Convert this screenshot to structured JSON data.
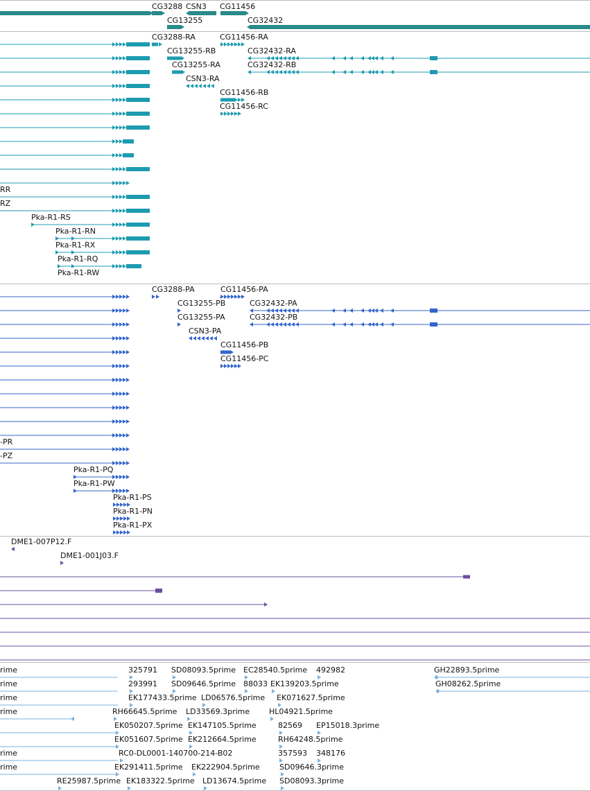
{
  "colors": {
    "gene": "#2a8a8a",
    "transcript": "#1d9bb0",
    "protein": "#3366cc",
    "clone": "#6b4fa0",
    "est": "#78b0dd",
    "divider": "#bbbbbb"
  },
  "genes": [
    {
      "label": "CG3288",
      "feature": "CG3288",
      "strand": "+",
      "rank": 0
    },
    {
      "label": "CSN3",
      "feature": "CSN3",
      "strand": "-",
      "rank": 0
    },
    {
      "label": "CG11456",
      "feature": "CG11456",
      "strand": "+",
      "rank": 0
    },
    {
      "label": "CG13255",
      "feature": "CG13255",
      "strand": "+",
      "rank": 1
    },
    {
      "label": "CG32432",
      "feature": "CG32432",
      "strand": "-",
      "rank": 1
    }
  ],
  "transcripts": [
    {
      "label": "",
      "feature": "Pka-R1-a",
      "strand": "+",
      "rank": 0
    },
    {
      "label": "",
      "feature": "Pka-R1-b",
      "strand": "+",
      "rank": 1
    },
    {
      "label": "",
      "feature": "Pka-R1-c",
      "strand": "+",
      "rank": 2
    },
    {
      "label": "",
      "feature": "Pka-R1-d",
      "strand": "+",
      "rank": 3
    },
    {
      "label": "",
      "feature": "Pka-R1-e",
      "strand": "+",
      "rank": 4
    },
    {
      "label": "",
      "feature": "Pka-R1-f",
      "strand": "+",
      "rank": 5
    },
    {
      "label": "",
      "feature": "Pka-R1-g",
      "strand": "+",
      "rank": 6
    },
    {
      "label": "",
      "feature": "Pka-R1-h",
      "strand": "+",
      "rank": 7
    },
    {
      "label": "",
      "feature": "Pka-R1-i",
      "strand": "+",
      "rank": 8
    },
    {
      "label": "",
      "feature": "Pka-R1-j",
      "strand": "+",
      "rank": 9
    },
    {
      "label": "",
      "feature": "Pka-R1-k",
      "strand": "+",
      "rank": 10
    },
    {
      "label": "RR",
      "feature": "Pka-R1-RR",
      "strand": "+",
      "rank": 11
    },
    {
      "label": "RZ",
      "feature": "Pka-R1-RZ",
      "strand": "+",
      "rank": 12
    },
    {
      "label": "Pka-R1-RS",
      "feature": "Pka-R1-RS",
      "strand": "+",
      "rank": 13
    },
    {
      "label": "Pka-R1-RN",
      "feature": "Pka-R1-RN",
      "strand": "+",
      "rank": 14
    },
    {
      "label": "Pka-R1-RX",
      "feature": "Pka-R1-RX",
      "strand": "+",
      "rank": 15
    },
    {
      "label": "Pka-R1-RQ",
      "feature": "Pka-R1-RQ",
      "strand": "+",
      "rank": 16
    },
    {
      "label": "Pka-R1-RW",
      "feature": "Pka-R1-RW",
      "strand": "+",
      "rank": 17
    },
    {
      "label": "CG3288-RA",
      "feature": "CG3288-RA",
      "strand": "+",
      "rank": 0
    },
    {
      "label": "CG13255-RB",
      "feature": "CG13255-RB",
      "strand": "+",
      "rank": 1
    },
    {
      "label": "CG13255-RA",
      "feature": "CG13255-RA",
      "strand": "+",
      "rank": 2
    },
    {
      "label": "CSN3-RA",
      "feature": "CSN3-RA",
      "strand": "-",
      "rank": 3
    },
    {
      "label": "CG11456-RA",
      "feature": "CG11456-RA",
      "strand": "+",
      "rank": 0
    },
    {
      "label": "CG11456-RB",
      "feature": "CG11456-RB",
      "strand": "+",
      "rank": 3
    },
    {
      "label": "CG11456-RC",
      "feature": "CG11456-RC",
      "strand": "+",
      "rank": 4
    },
    {
      "label": "CG32432-RA",
      "feature": "CG32432-RA",
      "strand": "-",
      "rank": 1
    },
    {
      "label": "CG32432-RB",
      "feature": "CG32432-RB",
      "strand": "-",
      "rank": 2
    }
  ],
  "proteins": [
    {
      "label": "",
      "feature": "Pka-R1-pa",
      "strand": "+",
      "rank": 0
    },
    {
      "label": "",
      "feature": "Pka-R1-pb",
      "strand": "+",
      "rank": 1
    },
    {
      "label": "",
      "feature": "Pka-R1-pc",
      "strand": "+",
      "rank": 2
    },
    {
      "label": "",
      "feature": "Pka-R1-pd",
      "strand": "+",
      "rank": 3
    },
    {
      "label": "",
      "feature": "Pka-R1-pe",
      "strand": "+",
      "rank": 4
    },
    {
      "label": "",
      "feature": "Pka-R1-pf",
      "strand": "+",
      "rank": 5
    },
    {
      "label": "",
      "feature": "Pka-R1-pg",
      "strand": "+",
      "rank": 6
    },
    {
      "label": "",
      "feature": "Pka-R1-ph",
      "strand": "+",
      "rank": 7
    },
    {
      "label": "",
      "feature": "Pka-R1-pi",
      "strand": "+",
      "rank": 8
    },
    {
      "label": "",
      "feature": "Pka-R1-pj",
      "strand": "+",
      "rank": 9
    },
    {
      "label": "-PR",
      "feature": "Pka-R1-PR",
      "strand": "+",
      "rank": 10
    },
    {
      "label": "-PZ",
      "feature": "Pka-R1-PZ",
      "strand": "+",
      "rank": 11
    },
    {
      "label": "Pka-R1-PQ",
      "feature": "Pka-R1-PQ",
      "strand": "+",
      "rank": 12
    },
    {
      "label": "Pka-R1-PW",
      "feature": "Pka-R1-PW",
      "strand": "+",
      "rank": 13
    },
    {
      "label": "Pka-R1-PS",
      "feature": "Pka-R1-PS",
      "strand": "+",
      "rank": 14
    },
    {
      "label": "Pka-R1-PN",
      "feature": "Pka-R1-PN",
      "strand": "+",
      "rank": 15
    },
    {
      "label": "Pka-R1-PX",
      "feature": "Pka-R1-PX",
      "strand": "+",
      "rank": 16
    },
    {
      "label": "CG3288-PA",
      "feature": "CG3288-PA",
      "strand": "+",
      "rank": 0
    },
    {
      "label": "CG11456-PA",
      "feature": "CG11456-PA",
      "strand": "+",
      "rank": 0
    },
    {
      "label": "CG13255-PB",
      "feature": "CG13255-PB",
      "strand": "+",
      "rank": 1
    },
    {
      "label": "CG13255-PA",
      "feature": "CG13255-PA",
      "strand": "+",
      "rank": 2
    },
    {
      "label": "CSN3-PA",
      "feature": "CSN3-PA",
      "strand": "-",
      "rank": 3
    },
    {
      "label": "CG11456-PB",
      "feature": "CG11456-PB",
      "strand": "+",
      "rank": 4
    },
    {
      "label": "CG11456-PC",
      "feature": "CG11456-PC",
      "strand": "+",
      "rank": 5
    },
    {
      "label": "CG32432-PA",
      "feature": "CG32432-PA",
      "strand": "-",
      "rank": 1
    },
    {
      "label": "CG32432-PB",
      "feature": "CG32432-PB",
      "strand": "-",
      "rank": 2
    }
  ],
  "clones": [
    {
      "label": "DME1-007P12.F",
      "feature": "DME1-007P12.F",
      "strand": "-",
      "rank": 0
    },
    {
      "label": "DME1-001J03.F",
      "feature": "DME1-001J03.F",
      "strand": "+",
      "rank": 1
    },
    {
      "label": "",
      "feature": "clone-c",
      "strand": "+",
      "rank": 2
    },
    {
      "label": "",
      "feature": "clone-d",
      "strand": "+",
      "rank": 3
    },
    {
      "label": "",
      "feature": "clone-e",
      "strand": "-",
      "rank": 4
    },
    {
      "label": "",
      "feature": "clone-f",
      "strand": "+",
      "rank": 5
    },
    {
      "label": "",
      "feature": "clone-g",
      "strand": "+",
      "rank": 6
    },
    {
      "label": "",
      "feature": "clone-h",
      "strand": "+",
      "rank": 7
    },
    {
      "label": "",
      "feature": "clone-i",
      "strand": "+",
      "rank": 8
    }
  ],
  "ests": [
    {
      "label": "rime",
      "feature": "est-left-1",
      "rank": 0
    },
    {
      "label": "rime",
      "feature": "est-left-2",
      "rank": 1
    },
    {
      "label": "rime",
      "feature": "est-left-3",
      "rank": 2
    },
    {
      "label": "rime",
      "feature": "est-left-4",
      "rank": 3
    },
    {
      "label": "rime",
      "feature": "est-left-7",
      "rank": 6
    },
    {
      "label": "rime",
      "feature": "est-left-8",
      "rank": 7
    },
    {
      "label": "325791",
      "feature": "325791",
      "rank": 0
    },
    {
      "label": "SD08093.5prime",
      "feature": "SD08093.5prime",
      "rank": 0
    },
    {
      "label": "EC28540.5prime",
      "feature": "EC28540.5prime",
      "rank": 0
    },
    {
      "label": "492982",
      "feature": "492982",
      "rank": 0
    },
    {
      "label": "GH22893.5prime",
      "feature": "GH22893.5prime",
      "rank": 0
    },
    {
      "label": "293991",
      "feature": "293991",
      "rank": 1
    },
    {
      "label": "SD09646.5prime",
      "feature": "SD09646.5prime",
      "rank": 1
    },
    {
      "label": "88033",
      "feature": "88033",
      "rank": 1
    },
    {
      "label": "EK139203.5prime",
      "feature": "EK139203.5prime",
      "rank": 1
    },
    {
      "label": "GH08262.5prime",
      "feature": "GH08262.5prime",
      "rank": 1
    },
    {
      "label": "EK177433.5prime",
      "feature": "EK177433.5prime",
      "rank": 2
    },
    {
      "label": "LD06576.5prime",
      "feature": "LD06576.5prime",
      "rank": 2
    },
    {
      "label": "EK071627.5prime",
      "feature": "EK071627.5prime",
      "rank": 2
    },
    {
      "label": "RH66645.5prime",
      "feature": "RH66645.5prime",
      "rank": 3
    },
    {
      "label": "LD33569.3prime",
      "feature": "LD33569.3prime",
      "rank": 3
    },
    {
      "label": "HL04921.5prime",
      "feature": "HL04921.5prime",
      "rank": 3
    },
    {
      "label": "EK050207.5prime",
      "feature": "EK050207.5prime",
      "rank": 4
    },
    {
      "label": "EK147105.5prime",
      "feature": "EK147105.5prime",
      "rank": 4
    },
    {
      "label": "82569",
      "feature": "82569",
      "rank": 4
    },
    {
      "label": "EP15018.3prime",
      "feature": "EP15018.3prime",
      "rank": 4
    },
    {
      "label": "EK051607.5prime",
      "feature": "EK051607.5prime",
      "rank": 5
    },
    {
      "label": "EK212664.5prime",
      "feature": "EK212664.5prime",
      "rank": 5
    },
    {
      "label": "RH64248.5prime",
      "feature": "RH64248.5prime",
      "rank": 5
    },
    {
      "label": "RC0-DL0001-140700-214-B02",
      "feature": "RC0-DL0001-140700-214-B02",
      "rank": 6
    },
    {
      "label": "357593",
      "feature": "357593",
      "rank": 6
    },
    {
      "label": "348176",
      "feature": "348176",
      "rank": 6
    },
    {
      "label": "EK291411.5prime",
      "feature": "EK291411.5prime",
      "rank": 7
    },
    {
      "label": "EK222904.5prime",
      "feature": "EK222904.5prime",
      "rank": 7
    },
    {
      "label": "SD09646.3prime",
      "feature": "SD09646.3prime",
      "rank": 7
    },
    {
      "label": "RE25987.5prime",
      "feature": "RE25987.5prime",
      "rank": 8
    },
    {
      "label": "EK183322.5prime",
      "feature": "EK183322.5prime",
      "rank": 8
    },
    {
      "label": "LD13674.5prime",
      "feature": "LD13674.5prime",
      "rank": 8
    },
    {
      "label": "SD08093.3prime",
      "feature": "SD08093.3prime",
      "rank": 8
    }
  ]
}
